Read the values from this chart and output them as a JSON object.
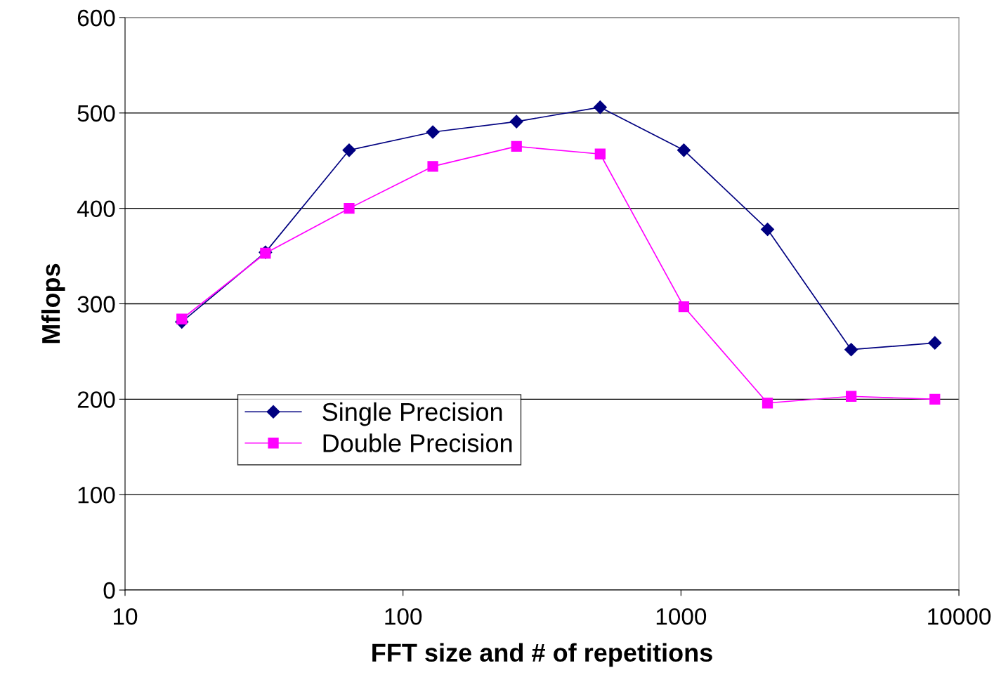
{
  "chart_data": {
    "type": "line",
    "xlabel": "FFT size and # of repetitions",
    "ylabel": "Mflops",
    "x": [
      16,
      32,
      64,
      128,
      256,
      512,
      1024,
      2048,
      4096,
      8192
    ],
    "series": [
      {
        "name": "Single Precision",
        "color": "#000080",
        "marker": "diamond",
        "values": [
          281,
          354,
          461,
          480,
          491,
          506,
          461,
          378,
          252,
          259
        ]
      },
      {
        "name": "Double Precision",
        "color": "#ff00ff",
        "marker": "square",
        "values": [
          284,
          353,
          400,
          444,
          465,
          457,
          297,
          196,
          203,
          200
        ]
      }
    ],
    "log": "x",
    "xlim": [
      10,
      10000
    ],
    "xticks": [
      10,
      100,
      1000,
      10000
    ],
    "ylim": [
      0,
      600
    ],
    "yticks": [
      0,
      100,
      200,
      300,
      400,
      500,
      600
    ],
    "grid": "y",
    "legend": "center left",
    "line_style": "solid"
  }
}
